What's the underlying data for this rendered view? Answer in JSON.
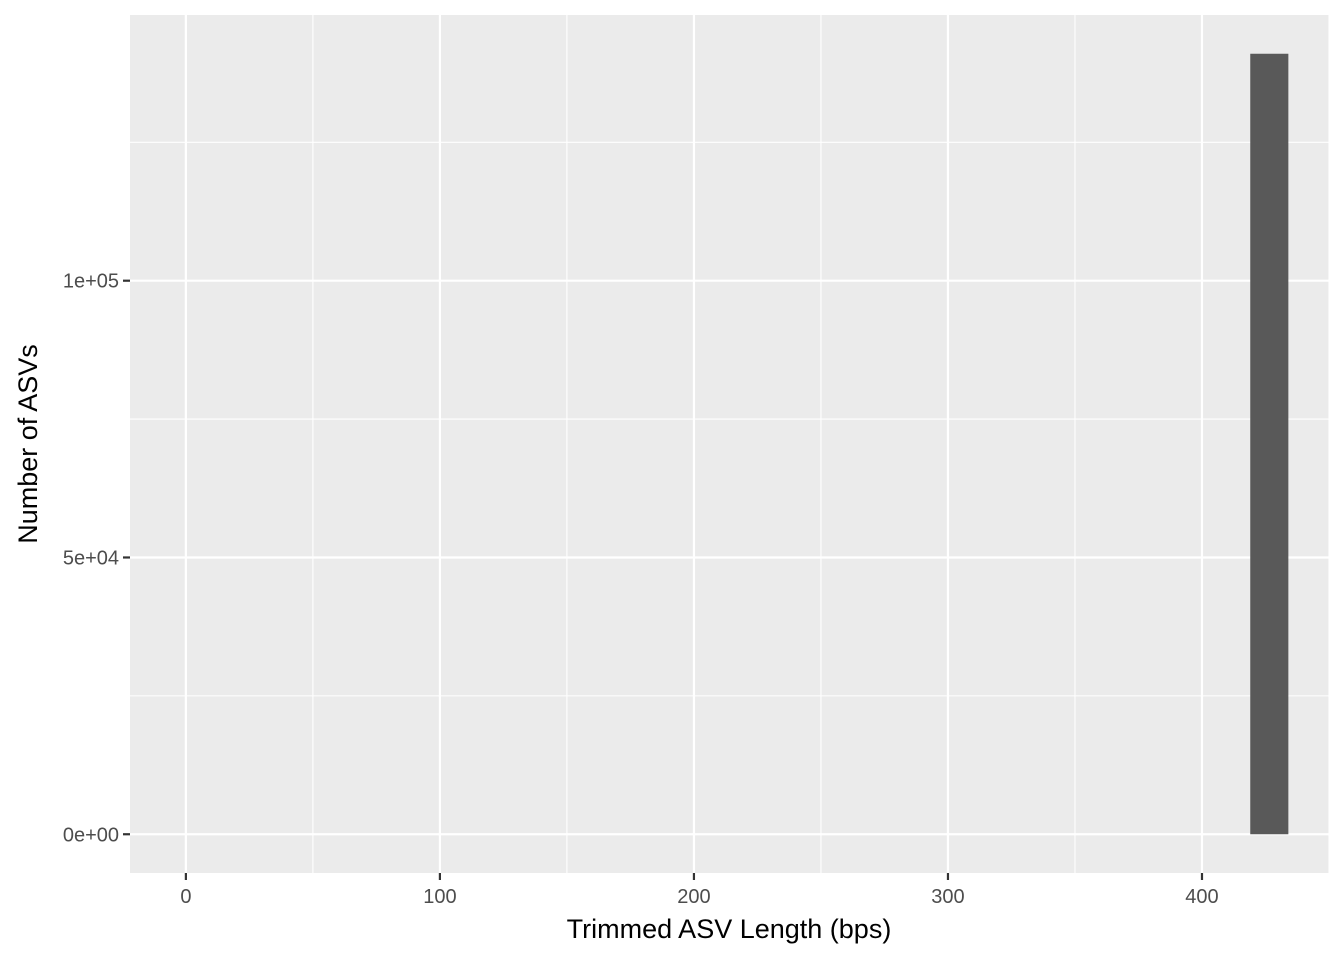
{
  "chart_data": {
    "type": "bar",
    "title": "",
    "xlabel": "Trimmed ASV Length (bps)",
    "ylabel": "Number of ASVs",
    "xlim": [
      -22,
      450
    ],
    "ylim": [
      -7000,
      148000
    ],
    "x_ticks": [
      0,
      100,
      200,
      300,
      400
    ],
    "x_tick_labels": [
      "0",
      "100",
      "200",
      "300",
      "400"
    ],
    "y_ticks": [
      0,
      50000,
      100000
    ],
    "y_tick_labels": [
      "0e+00",
      "5e+04",
      "1e+05"
    ],
    "x_minor_breaks": [
      50,
      150,
      250,
      350,
      450
    ],
    "y_minor_breaks": [
      25000,
      75000,
      125000
    ],
    "grid": true,
    "legend": "none",
    "colors": {
      "panel_background": "#ebebeb",
      "grid": "#ffffff",
      "bar_fill": "#595959",
      "tick_label": "#4d4d4d",
      "axis_ticks": "#333333"
    },
    "bins": [
      {
        "x_start": 419,
        "x_end": 434,
        "count": 141000
      }
    ]
  }
}
